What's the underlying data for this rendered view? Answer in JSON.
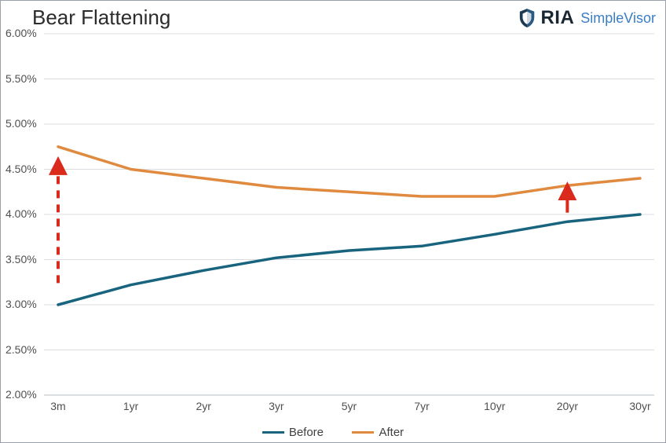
{
  "chart": {
    "type": "line",
    "title": "Bear Flattening",
    "title_fontsize": 26,
    "background_color": "#ffffff",
    "border_color": "#9aa1a8",
    "grid_color": "#d9dde1",
    "x_categories": [
      "3m",
      "1yr",
      "2yr",
      "3yr",
      "5yr",
      "7yr",
      "10yr",
      "20yr",
      "30yr"
    ],
    "y_ticks": [
      2.0,
      2.5,
      3.0,
      3.5,
      4.0,
      4.5,
      5.0,
      5.5,
      6.0
    ],
    "y_tick_labels": [
      "2.00%",
      "2.50%",
      "3.00%",
      "3.50%",
      "4.00%",
      "4.50%",
      "5.00%",
      "5.50%",
      "6.00%"
    ],
    "ylim": [
      2.0,
      6.0
    ],
    "label_fontsize": 14,
    "series": [
      {
        "name": "Before",
        "color": "#18647e",
        "line_width": 3.5,
        "values": [
          3.0,
          3.22,
          3.38,
          3.52,
          3.6,
          3.65,
          3.78,
          3.92,
          4.0
        ]
      },
      {
        "name": "After",
        "color": "#e08a3f",
        "line_width": 3.5,
        "values": [
          4.75,
          4.5,
          4.4,
          4.3,
          4.25,
          4.2,
          4.2,
          4.32,
          4.4
        ]
      }
    ],
    "annotations": [
      {
        "type": "dashed_arrow_up",
        "x_index": 0,
        "y_from": 3.24,
        "y_to": 4.54,
        "color": "#d92a1c",
        "stroke_width": 4,
        "dash": "10,8"
      },
      {
        "type": "solid_arrow_up",
        "x_index": 7,
        "y_from": 4.02,
        "y_to": 4.26,
        "color": "#d92a1c",
        "stroke_width": 4
      }
    ],
    "legend_labels": {
      "before": "Before",
      "after": "After"
    },
    "logo": {
      "ria": "RIA",
      "simplevisor": "SimpleVisor"
    }
  }
}
